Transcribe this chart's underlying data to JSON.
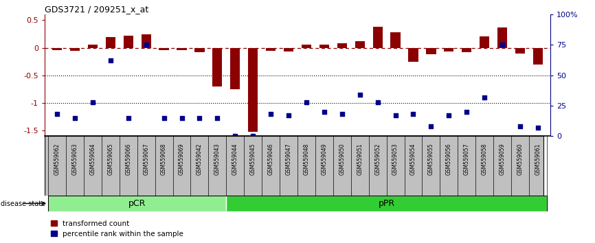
{
  "title": "GDS3721 / 209251_x_at",
  "samples": [
    "GSM559062",
    "GSM559063",
    "GSM559064",
    "GSM559065",
    "GSM559066",
    "GSM559067",
    "GSM559068",
    "GSM559069",
    "GSM559042",
    "GSM559043",
    "GSM559044",
    "GSM559045",
    "GSM559046",
    "GSM559047",
    "GSM559048",
    "GSM559049",
    "GSM559050",
    "GSM559051",
    "GSM559052",
    "GSM559053",
    "GSM559054",
    "GSM559055",
    "GSM559056",
    "GSM559057",
    "GSM559058",
    "GSM559059",
    "GSM559060",
    "GSM559061"
  ],
  "bar_values": [
    -0.04,
    -0.06,
    0.05,
    0.19,
    0.22,
    0.24,
    -0.04,
    -0.04,
    -0.08,
    -0.7,
    -0.75,
    -1.52,
    -0.05,
    -0.07,
    0.06,
    0.05,
    0.08,
    0.12,
    0.38,
    0.28,
    -0.25,
    -0.12,
    -0.07,
    -0.08,
    0.2,
    0.37,
    -0.1,
    -0.3
  ],
  "percentile_ranks": [
    18,
    15,
    28,
    62,
    15,
    75,
    15,
    15,
    15,
    15,
    0,
    0,
    18,
    17,
    28,
    20,
    18,
    34,
    28,
    17,
    18,
    8,
    17,
    20,
    32,
    75,
    8,
    7
  ],
  "pCR_count": 10,
  "bar_color": "#8B0000",
  "scatter_color": "#00008B",
  "ylim_left": [
    -1.6,
    0.6
  ],
  "ylim_right": [
    0,
    100
  ],
  "yticks_left": [
    0.5,
    0.0,
    -0.5,
    -1.0,
    -1.5
  ],
  "yticks_right": [
    100,
    75,
    50,
    25,
    0
  ],
  "dotted_lines": [
    -0.5,
    -1.0
  ],
  "pCR_color": "#90EE90",
  "pPR_color": "#32CD32",
  "label_bg_color": "#C0C0C0"
}
